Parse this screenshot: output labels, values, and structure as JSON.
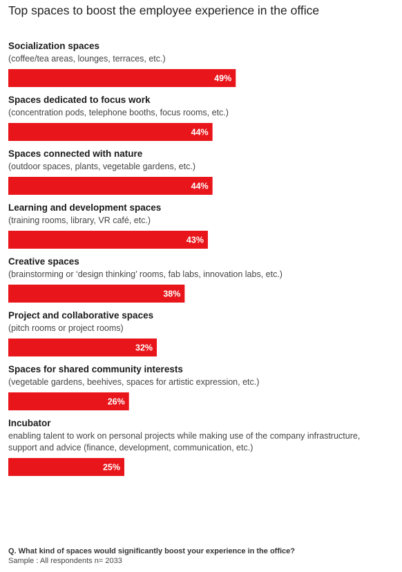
{
  "chart_data": {
    "type": "bar",
    "orientation": "horizontal",
    "title": "Top spaces to boost the employee experience in the office",
    "categories": [
      "Socialization spaces",
      "Spaces dedicated to focus work",
      "Spaces connected with nature",
      "Learning and development spaces",
      "Creative spaces",
      "Project and collaborative spaces",
      "Spaces for shared community interests",
      "Incubator"
    ],
    "descriptions": [
      [
        "(coffee/tea areas, lounges, terraces, etc.)"
      ],
      [
        "(concentration pods, telephone booths, focus rooms, etc.)"
      ],
      [
        "(outdoor spaces, plants, vegetable gardens, etc.)"
      ],
      [
        "(training rooms, library, VR café, etc.)"
      ],
      [
        "(brainstorming or ‘design thinking’ rooms, fab labs, innovation labs, etc.)"
      ],
      [
        "(pitch rooms or project rooms)"
      ],
      [
        "(vegetable gardens, beehives, spaces for artistic expression, etc.)"
      ],
      [
        "enabling talent to work on personal projects while making use of the company infrastructure,",
        "support and advice (finance, development, communication, etc.)"
      ]
    ],
    "values": [
      49,
      44,
      44,
      43,
      38,
      32,
      26,
      25
    ],
    "value_labels": [
      "49%",
      "44%",
      "44%",
      "43%",
      "38%",
      "32%",
      "26%",
      "25%"
    ],
    "unit": "%",
    "xlim": [
      0,
      100
    ],
    "grid": false,
    "legend": "none",
    "bar_color": "#e8161b",
    "label_color": "#ffffff"
  },
  "footer": {
    "question": "Q. What kind of spaces would significantly boost your experience in the office?",
    "sample": "Sample : All respondents n= 2033"
  }
}
